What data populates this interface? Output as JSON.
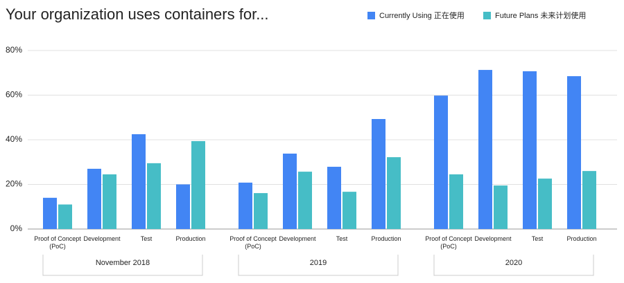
{
  "chart_data": {
    "type": "bar",
    "title": "Your organization uses containers for...",
    "groups": [
      {
        "name": "November 2018",
        "categories": [
          "Proof of Concept (PoC)",
          "Development",
          "Test",
          "Production"
        ]
      },
      {
        "name": "2019",
        "categories": [
          "Proof of Concept (PoC)",
          "Development",
          "Test",
          "Production"
        ]
      },
      {
        "name": "2020",
        "categories": [
          "Proof of Concept (PoC)",
          "Development",
          "Test",
          "Production"
        ]
      }
    ],
    "series": [
      {
        "name": "Currently Using 正在使用",
        "color": "#4285f4",
        "values": [
          [
            14,
            27,
            42.5,
            20
          ],
          [
            20.8,
            33.8,
            27.9,
            49.3
          ],
          [
            59.8,
            71.3,
            70.7,
            68.5
          ]
        ]
      },
      {
        "name": "Future Plans 未来计划使用",
        "color": "#46bdc6",
        "values": [
          [
            11,
            24.5,
            29.5,
            39.4
          ],
          [
            16.1,
            25.7,
            16.7,
            32.2
          ],
          [
            24.5,
            19.5,
            22.6,
            26
          ]
        ]
      }
    ],
    "ylim": [
      0,
      80
    ],
    "yticks": [
      {
        "value": 0,
        "label": "0%"
      },
      {
        "value": 20,
        "label": "20%"
      },
      {
        "value": 40,
        "label": "40%"
      },
      {
        "value": 60,
        "label": "60%"
      },
      {
        "value": 80,
        "label": "80%"
      }
    ],
    "grid": true,
    "legend": "top-right"
  }
}
